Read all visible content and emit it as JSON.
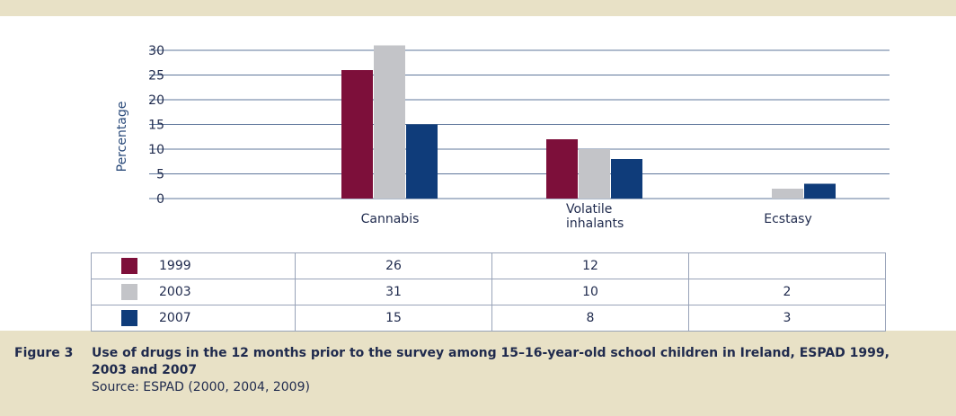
{
  "chart_data": {
    "type": "bar",
    "categories": [
      [
        "Cannabis"
      ],
      [
        "Volatile",
        "inhalants"
      ],
      [
        "Ecstasy"
      ]
    ],
    "series": [
      {
        "name": "1999",
        "color": "#7d0f3a",
        "values": [
          26,
          12,
          null
        ],
        "display": [
          "26",
          "12",
          ""
        ]
      },
      {
        "name": "2003",
        "color": "#c3c4c8",
        "values": [
          31,
          10,
          2
        ],
        "display": [
          "31",
          "10",
          "2"
        ]
      },
      {
        "name": "2007",
        "color": "#0f3c7a",
        "values": [
          15,
          8,
          3
        ],
        "display": [
          "15",
          "8",
          "3"
        ]
      }
    ],
    "ylabel": "Percentage",
    "ylim": [
      0,
      30
    ],
    "yticks": [
      0,
      5,
      10,
      15,
      20,
      25,
      30
    ],
    "grid": true,
    "legend": "table-below"
  },
  "caption": {
    "figure_number": "Figure 3",
    "title": "Use of drugs in the 12 months prior to the survey among 15–16-year-old school children in Ireland, ESPAD 1999, 2003 and 2007",
    "source": "Source: ESPAD (2000, 2004, 2009)"
  },
  "colors": {
    "background": "#e8e1c6",
    "panel": "#ffffff",
    "text": "#1f2a4d",
    "grid": "#2a4a7a"
  }
}
